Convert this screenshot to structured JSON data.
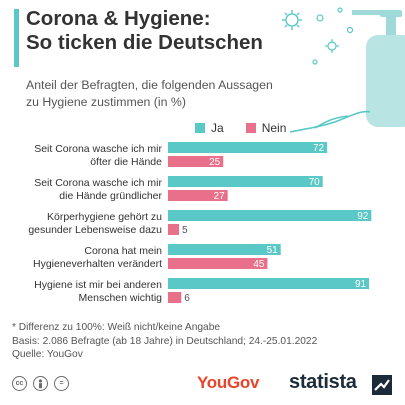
{
  "header": {
    "title_line1": "Corona & Hygiene:",
    "title_line2": "So ticken die Deutschen",
    "subtitle_line1": "Anteil der Befragten, die folgenden Aussagen",
    "subtitle_line2": "zu Hygiene zustimmen (in %)",
    "accent_color": "#5bc8c8"
  },
  "legend": {
    "items": [
      {
        "label": "Ja",
        "color": "#5bc8c8"
      },
      {
        "label": "Nein",
        "color": "#e8708a"
      }
    ]
  },
  "chart_data": {
    "type": "bar",
    "orientation": "horizontal",
    "categories": [
      [
        "Seit Corona wasche ich mir",
        "öfter die Hände"
      ],
      [
        "Seit Corona wasche ich mir",
        "die Hände gründlicher"
      ],
      [
        "Körperhygiene gehört zu",
        "gesunder Lebensweise dazu"
      ],
      [
        "Corona hat mein",
        "Hygieneverhalten verändert"
      ],
      [
        "Hygiene ist mir bei anderen",
        "Menschen wichtig"
      ]
    ],
    "series": [
      {
        "name": "Ja",
        "color": "#5bc8c8",
        "values": [
          72,
          70,
          92,
          51,
          91
        ]
      },
      {
        "name": "Nein",
        "color": "#e8708a",
        "values": [
          25,
          27,
          5,
          45,
          6
        ]
      }
    ],
    "xlim": [
      0,
      100
    ],
    "grid": false,
    "legend_position": "top-right"
  },
  "notes": {
    "line1": "* Differenz zu 100%: Weiß nicht/keine Angabe",
    "line2": "Basis: 2.086 Befragte (ab 18 Jahre) in Deutschland; 24.-25.01.2022",
    "line3": "Quelle: YouGov"
  },
  "footer": {
    "yougov": "YouGov",
    "statista": "statista",
    "license_icons": [
      "cc-icon",
      "by-icon",
      "nd-icon"
    ]
  }
}
